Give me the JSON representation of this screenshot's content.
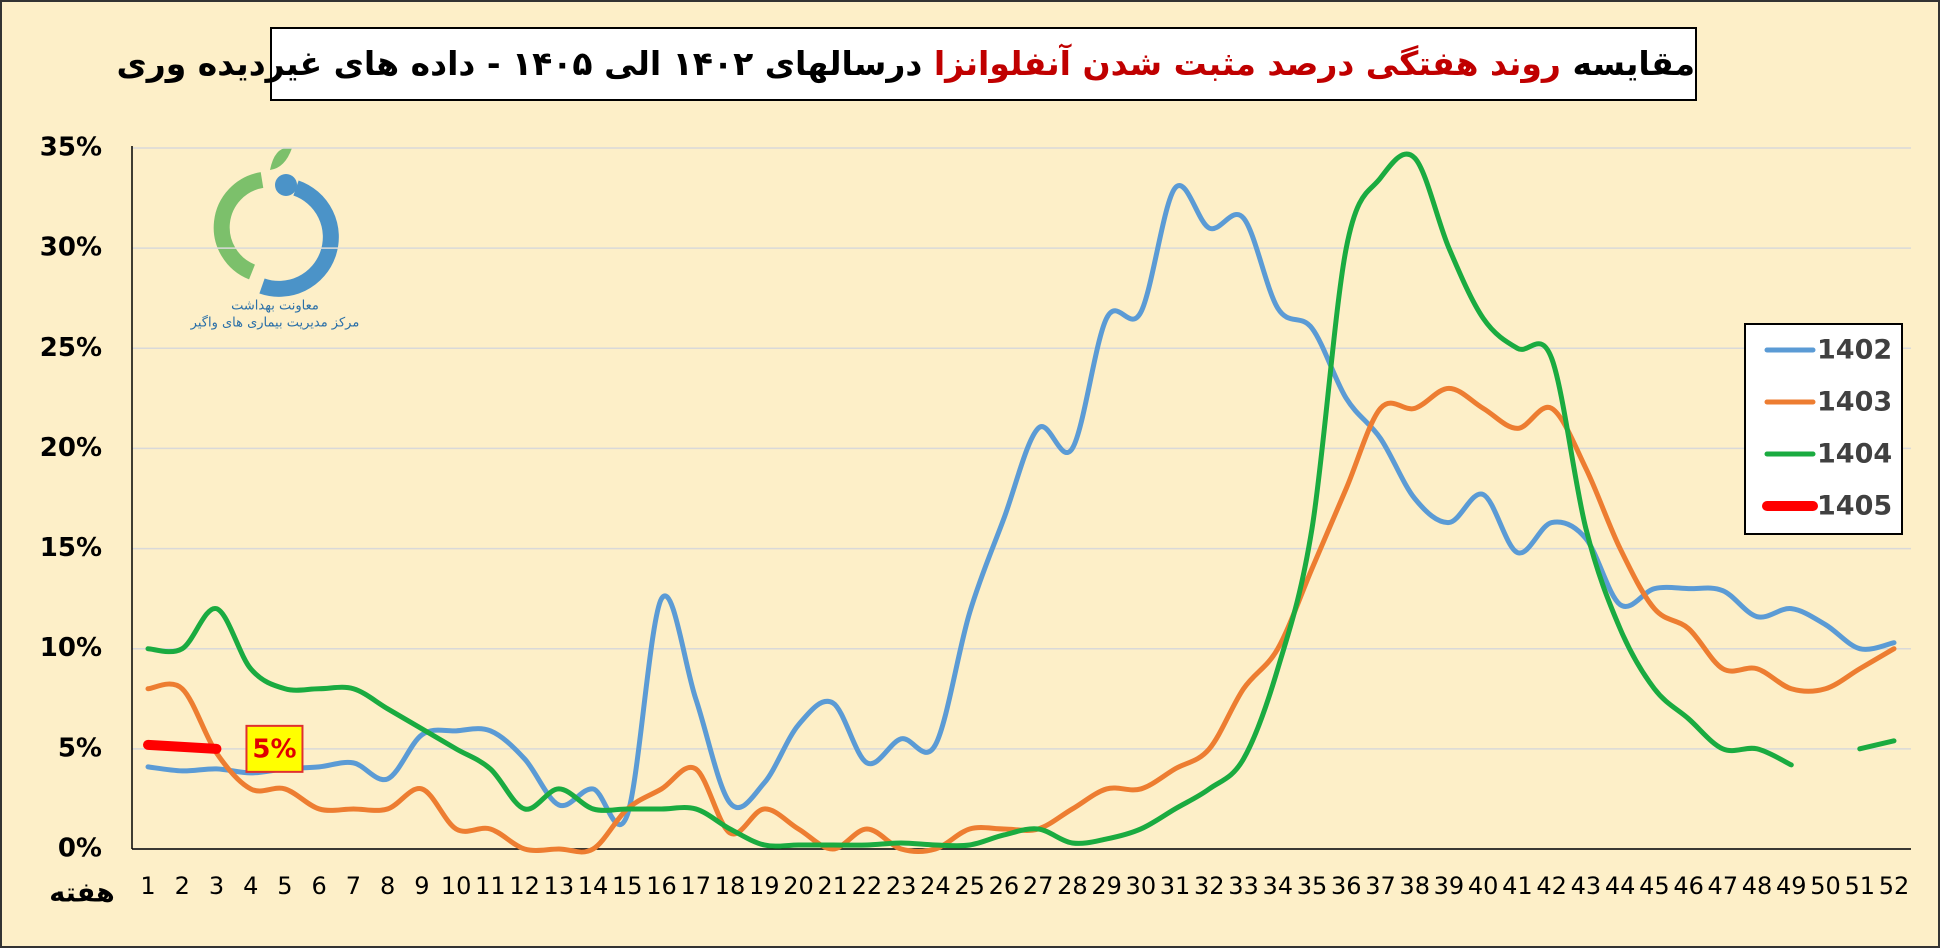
{
  "chart_data": {
    "type": "line",
    "title": [
      {
        "text": "مقایسه",
        "color": "#000000"
      },
      {
        "text": "روند هفتگی درصد مثبت شدن آنفلوانزا",
        "color": "#c00000"
      },
      {
        "text": "درسالهای ۱۴۰۲ الی ۱۴۰۵ - داده های غیردیده وری",
        "color": "#000000"
      }
    ],
    "logo_text": [
      "معاونت بهداشت",
      "مرکز مدیریت بیماری های واگیر"
    ],
    "xlabel": "هفته",
    "categories": [
      "1",
      "2",
      "3",
      "4",
      "5",
      "6",
      "7",
      "8",
      "9",
      "10",
      "11",
      "12",
      "13",
      "14",
      "15",
      "16",
      "17",
      "18",
      "19",
      "20",
      "21",
      "22",
      "23",
      "24",
      "25",
      "26",
      "27",
      "28",
      "29",
      "30",
      "31",
      "32",
      "33",
      "34",
      "35",
      "36",
      "37",
      "38",
      "39",
      "40",
      "41",
      "42",
      "43",
      "44",
      "45",
      "46",
      "47",
      "48",
      "49",
      "50",
      "51",
      "52"
    ],
    "ylim": [
      0,
      35
    ],
    "yticks": [
      {
        "value": 0,
        "label": "0%"
      },
      {
        "value": 5,
        "label": "5%"
      },
      {
        "value": 10,
        "label": "10%"
      },
      {
        "value": 15,
        "label": "15%"
      },
      {
        "value": 20,
        "label": "20%"
      },
      {
        "value": 25,
        "label": "25%"
      },
      {
        "value": 30,
        "label": "30%"
      },
      {
        "value": 35,
        "label": "35%"
      }
    ],
    "grid": true,
    "legend": "right",
    "series": [
      {
        "name": "1402",
        "color": "#5b9bd5",
        "values": [
          4.1,
          3.9,
          4.0,
          3.8,
          4.0,
          4.1,
          4.3,
          3.5,
          5.7,
          5.9,
          5.9,
          4.5,
          2.2,
          3.0,
          1.7,
          12.5,
          7.5,
          2.3,
          3.3,
          6.2,
          7.3,
          4.3,
          5.5,
          5.2,
          11.8,
          16.5,
          21.0,
          20.0,
          26.5,
          26.8,
          33.0,
          31.0,
          31.5,
          27.0,
          26.0,
          22.5,
          20.5,
          17.5,
          16.3,
          17.7,
          14.8,
          16.3,
          15.5,
          12.2,
          13.0,
          13.0,
          12.9,
          11.6,
          12.0,
          11.2,
          10.0,
          10.3
        ]
      },
      {
        "name": "1403",
        "color": "#ed7d31",
        "values": [
          8.0,
          8.0,
          4.8,
          3.0,
          3.0,
          2.0,
          2.0,
          2.0,
          3.0,
          1.0,
          1.0,
          0,
          0,
          0,
          2.0,
          3.0,
          4.0,
          0.8,
          2.0,
          1.0,
          0,
          1.0,
          0,
          0,
          1.0,
          1.0,
          1.0,
          2.0,
          3.0,
          3.0,
          4.0,
          5.0,
          8.0,
          10.0,
          14.0,
          18.0,
          22.0,
          22.0,
          23.0,
          22.0,
          21.0,
          22.0,
          19.0,
          15.0,
          12.0,
          11.0,
          9.0,
          9.0,
          8.0,
          8.0,
          9.0,
          10.0
        ]
      },
      {
        "name": "1404",
        "color": "#1aab40",
        "values": [
          10.0,
          10.0,
          12.0,
          9.0,
          8.0,
          8.0,
          8.0,
          7.0,
          6.0,
          5.0,
          4.0,
          2.0,
          3.0,
          2.0,
          2.0,
          2.0,
          2.0,
          1.0,
          0.2,
          0.2,
          0.2,
          0.2,
          0.3,
          0.2,
          0.2,
          0.7,
          1.0,
          0.3,
          0.5,
          1.0,
          2.0,
          3.0,
          4.5,
          9.0,
          16.0,
          30.0,
          33.5,
          34.5,
          30.0,
          26.5,
          25.0,
          24.5,
          16.0,
          11.0,
          8.0,
          6.5,
          5.0,
          5.0,
          4.2,
          null,
          5.0,
          5.4
        ]
      },
      {
        "name": "1405",
        "color": "#ff0000",
        "width": 10,
        "values": [
          5.2,
          5.1,
          5.0,
          null,
          null,
          null,
          null,
          null,
          null,
          null,
          null,
          null,
          null,
          null,
          null,
          null,
          null,
          null,
          null,
          null,
          null,
          null,
          null,
          null,
          null,
          null,
          null,
          null,
          null,
          null,
          null,
          null,
          null,
          null,
          null,
          null,
          null,
          null,
          null,
          null,
          null,
          null,
          null,
          null,
          null,
          null,
          null,
          null,
          null,
          null,
          null,
          null
        ]
      }
    ],
    "annotation": {
      "text": "5%",
      "x": 3,
      "y": 5.0
    }
  }
}
